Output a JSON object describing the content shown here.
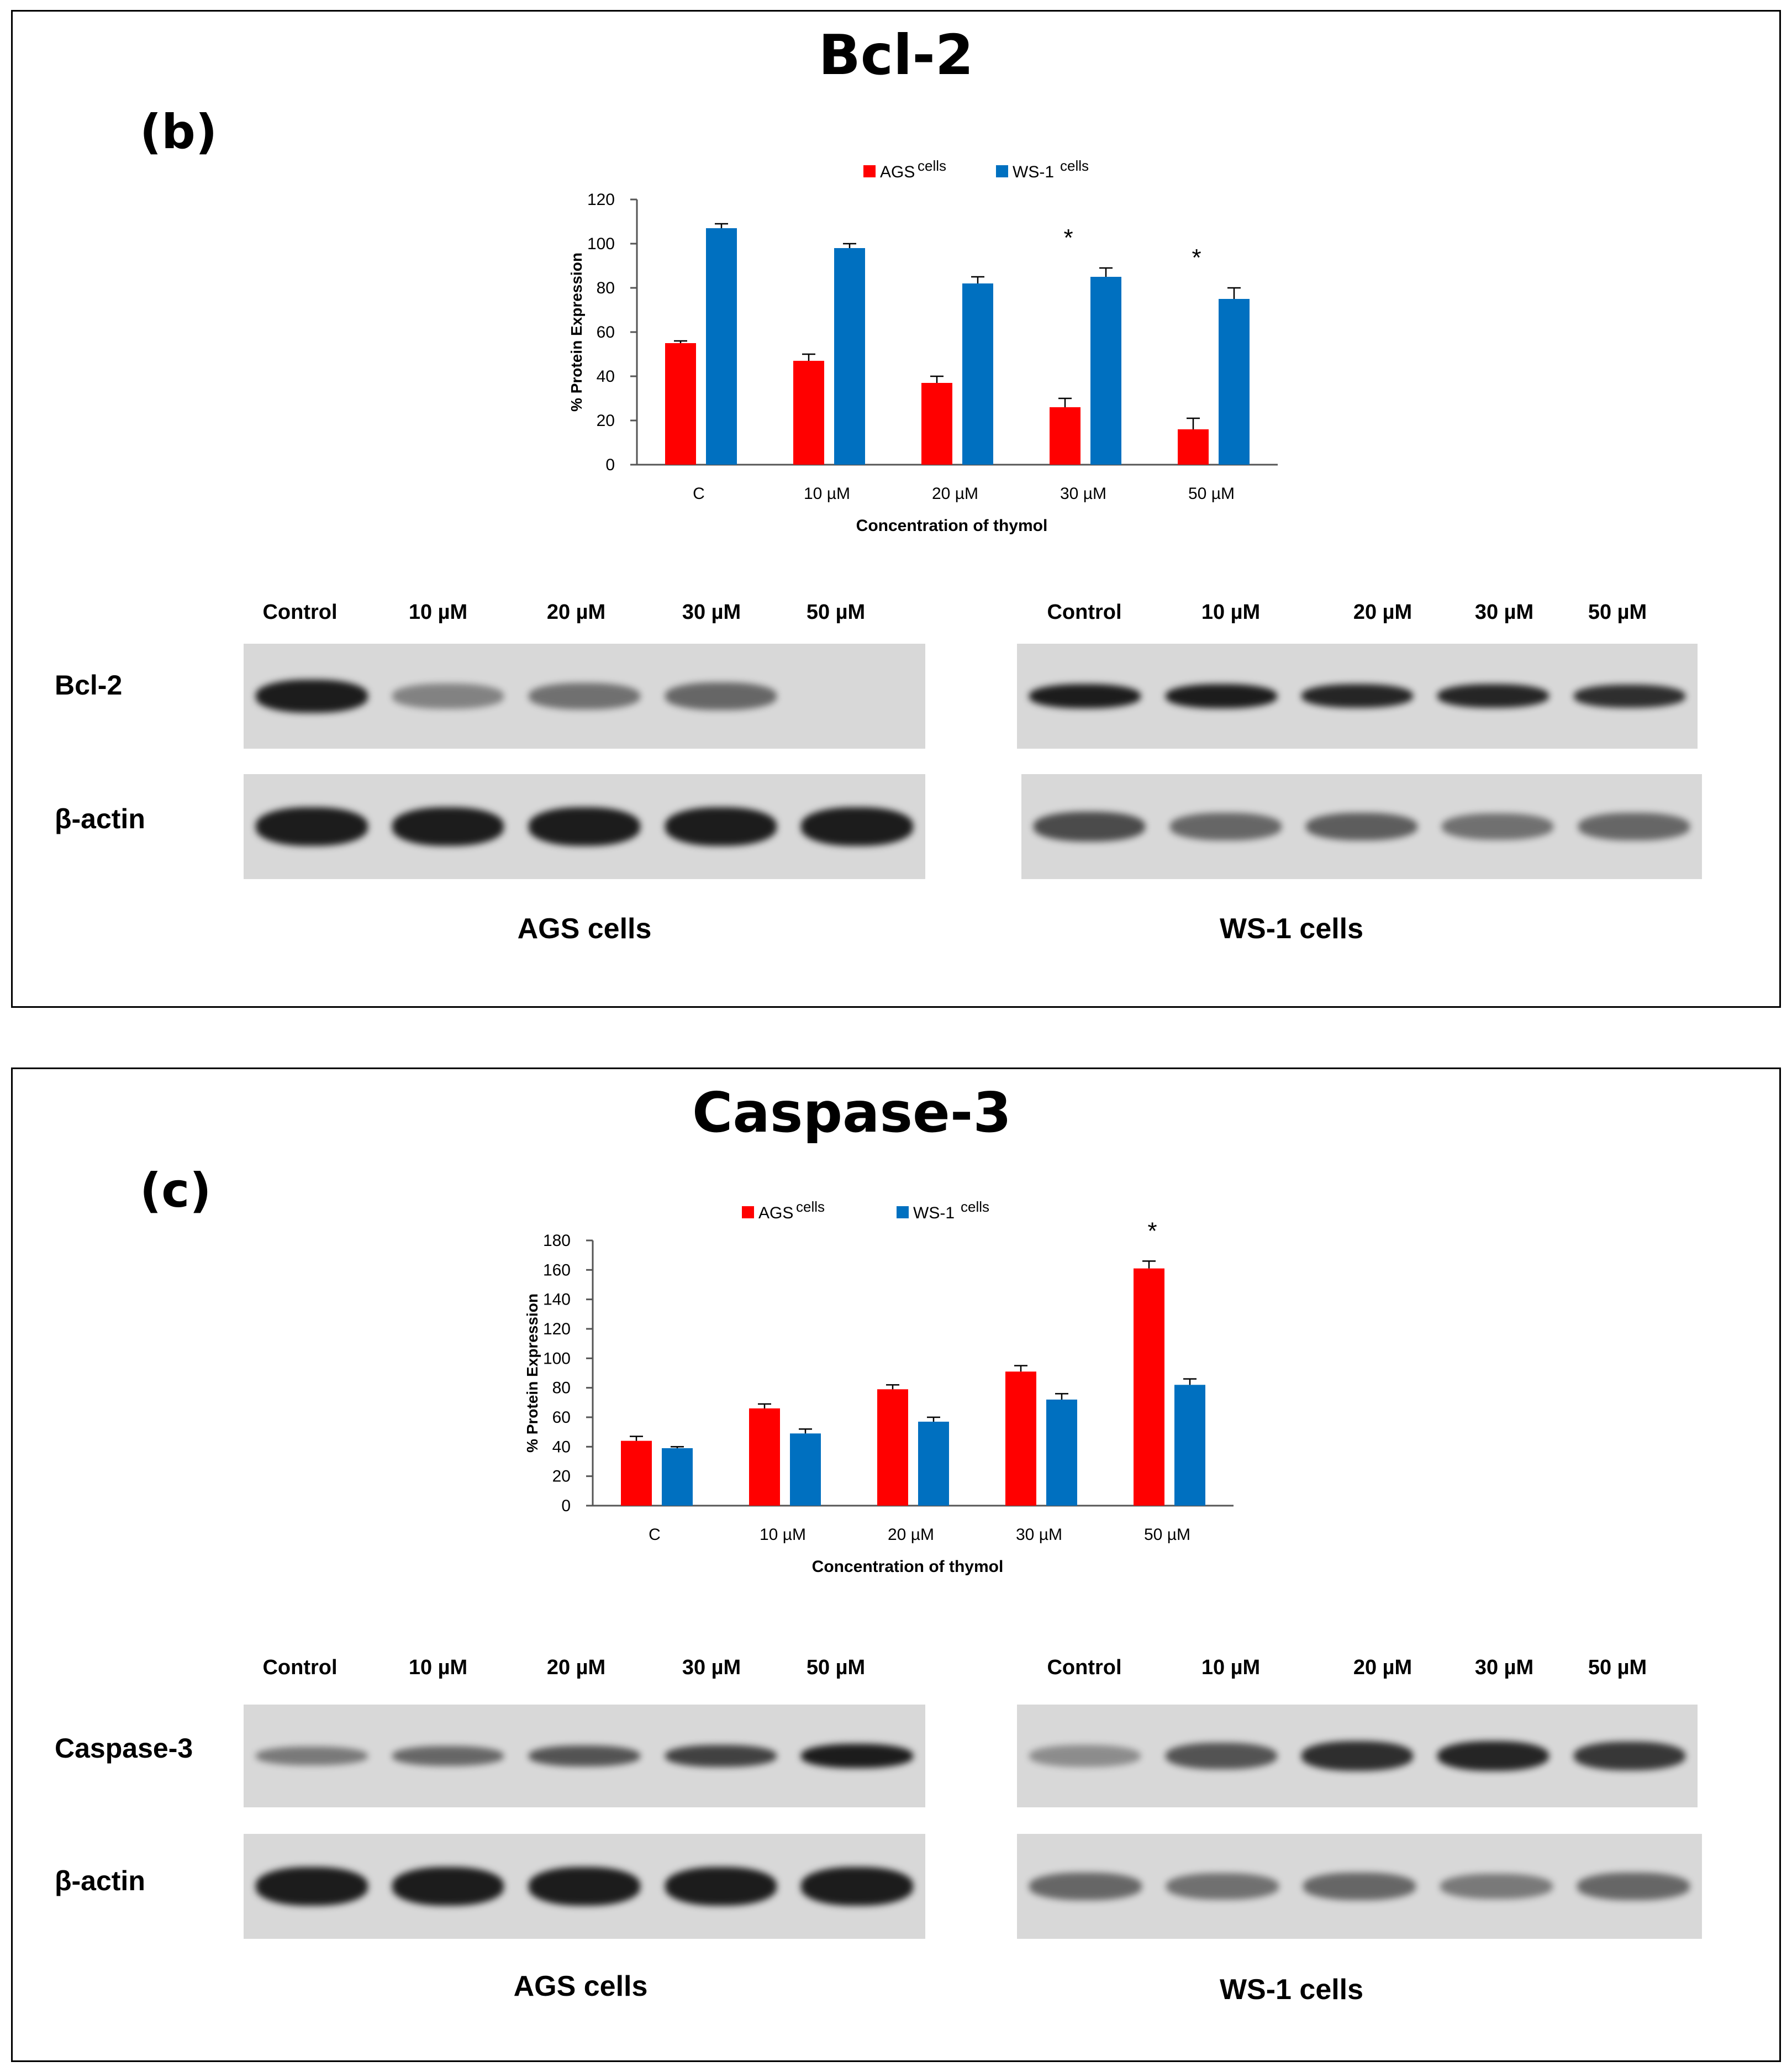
{
  "panels": [
    {
      "id": "b",
      "title": "Bcl-2",
      "letter": "(b)",
      "blot_row_labels": [
        "Bcl-2",
        "β-actin"
      ],
      "lanes_ags": [
        "Control",
        "10 µM",
        "20 µM",
        "30 µM",
        "50 µM"
      ],
      "lanes_ws1": [
        "Control",
        "10 µM",
        "20  µM",
        "30 µM",
        "50 µM"
      ],
      "ags_label": "AGS cells",
      "ws1_label": "WS-1 cells",
      "ags_target_intensity": [
        1.0,
        0.45,
        0.55,
        0.6,
        0.0
      ],
      "ws1_target_intensity": [
        1.0,
        1.0,
        0.95,
        0.95,
        0.9
      ],
      "ags_actin_intensity": [
        1.0,
        1.0,
        1.0,
        1.0,
        1.0
      ],
      "ws1_actin_intensity": [
        0.75,
        0.6,
        0.65,
        0.55,
        0.6
      ]
    },
    {
      "id": "c",
      "title": "Caspase-3",
      "letter": "(c)",
      "blot_row_labels": [
        "Caspase-3",
        "β-actin"
      ],
      "lanes_ags": [
        "Control",
        "10 µM",
        "20 µM",
        "30 µM",
        "50 µM"
      ],
      "lanes_ws1": [
        "Control",
        "10 µM",
        "20 µM",
        "30 µM",
        "50 µM"
      ],
      "ags_label": "AGS cells",
      "ws1_label": "WS-1 cells",
      "ags_target_intensity": [
        0.5,
        0.6,
        0.7,
        0.8,
        1.0
      ],
      "ws1_target_intensity": [
        0.4,
        0.7,
        0.9,
        0.95,
        0.85
      ],
      "ags_actin_intensity": [
        1.0,
        1.0,
        1.0,
        1.0,
        1.0
      ],
      "ws1_actin_intensity": [
        0.6,
        0.55,
        0.6,
        0.5,
        0.6
      ]
    }
  ],
  "chart_data": [
    {
      "type": "bar",
      "categories": [
        "C",
        "10 µM",
        "20 µM",
        "30 µM",
        "50 µM"
      ],
      "series": [
        {
          "name": "AGS",
          "superscript": "cells",
          "color": "#ff0000",
          "values": [
            55,
            47,
            37,
            26,
            16
          ],
          "errors": [
            1,
            3,
            3,
            4,
            5
          ]
        },
        {
          "name": "WS-1",
          "superscript": "cells",
          "color": "#0070c0",
          "values": [
            107,
            98,
            82,
            85,
            75
          ],
          "errors": [
            2,
            2,
            3,
            4,
            5
          ]
        }
      ],
      "xlabel": "Concentration of thymol",
      "ylabel": "% Protein Expression",
      "ylim": [
        0,
        120
      ],
      "yticks": [
        0,
        20,
        40,
        60,
        80,
        100,
        120
      ],
      "significance": [
        {
          "category": "30 µM",
          "mark": "*"
        },
        {
          "category": "50 µM",
          "mark": "*"
        }
      ],
      "legend": "top-center",
      "grid": false
    },
    {
      "type": "bar",
      "categories": [
        "C",
        "10 µM",
        "20 µM",
        "30 µM",
        "50 µM"
      ],
      "series": [
        {
          "name": "AGS",
          "superscript": "cells",
          "color": "#ff0000",
          "values": [
            44,
            66,
            79,
            91,
            161
          ],
          "errors": [
            3,
            3,
            3,
            4,
            5
          ]
        },
        {
          "name": "WS-1",
          "superscript": "cells",
          "color": "#0070c0",
          "values": [
            39,
            49,
            57,
            72,
            82
          ],
          "errors": [
            1,
            3,
            3,
            4,
            4
          ]
        }
      ],
      "xlabel": "Concentration of thymol",
      "ylabel": "% Protein Expression",
      "ylim": [
        0,
        180
      ],
      "yticks": [
        0,
        20,
        40,
        60,
        80,
        100,
        120,
        140,
        160,
        180
      ],
      "significance": [
        {
          "category": "50 µM",
          "mark": "*"
        }
      ],
      "legend": "top-center",
      "grid": false
    }
  ]
}
